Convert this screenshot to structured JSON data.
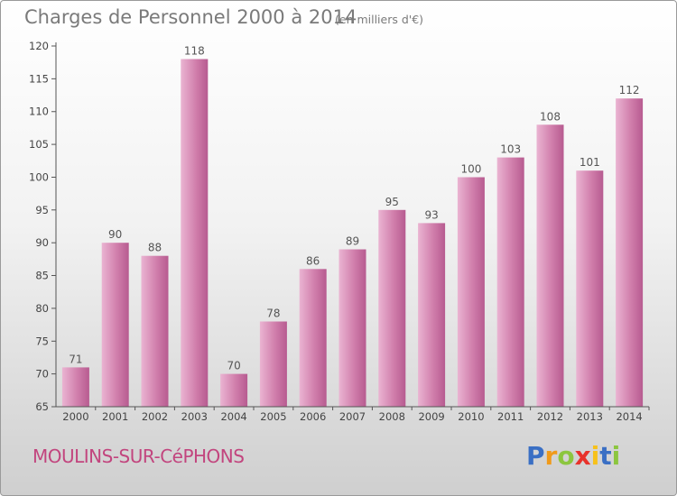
{
  "header": {
    "title": "Charges de Personnel 2000 à 2014",
    "subtitle": "(en milliers d'€)"
  },
  "footer": {
    "town": "MOULINS-SUR-CéPHONS",
    "logo": "Proxiti"
  },
  "colors": {
    "bar": "#d17fac",
    "bar_light": "#eab4d2",
    "bar_dark": "#b75b90",
    "axis": "#555555",
    "town": "#c2457e",
    "logo_letters": [
      "#3a6fc4",
      "#f09a1a",
      "#8cc63f",
      "#e8322b",
      "#f7c11a",
      "#3a6fc4",
      "#8cc63f"
    ]
  },
  "chart_data": {
    "type": "bar",
    "title": "Charges de Personnel 2000 à 2014",
    "subtitle": "(en milliers d'€)",
    "categories": [
      "2000",
      "2001",
      "2002",
      "2003",
      "2004",
      "2005",
      "2006",
      "2007",
      "2008",
      "2009",
      "2010",
      "2011",
      "2012",
      "2013",
      "2014"
    ],
    "values": [
      71,
      90,
      88,
      118,
      70,
      78,
      86,
      89,
      95,
      93,
      100,
      103,
      108,
      101,
      112
    ],
    "ylim": [
      65,
      120
    ],
    "yticks": [
      65,
      70,
      75,
      80,
      85,
      90,
      95,
      100,
      105,
      110,
      115,
      120
    ],
    "grid": false,
    "legend": "none"
  }
}
